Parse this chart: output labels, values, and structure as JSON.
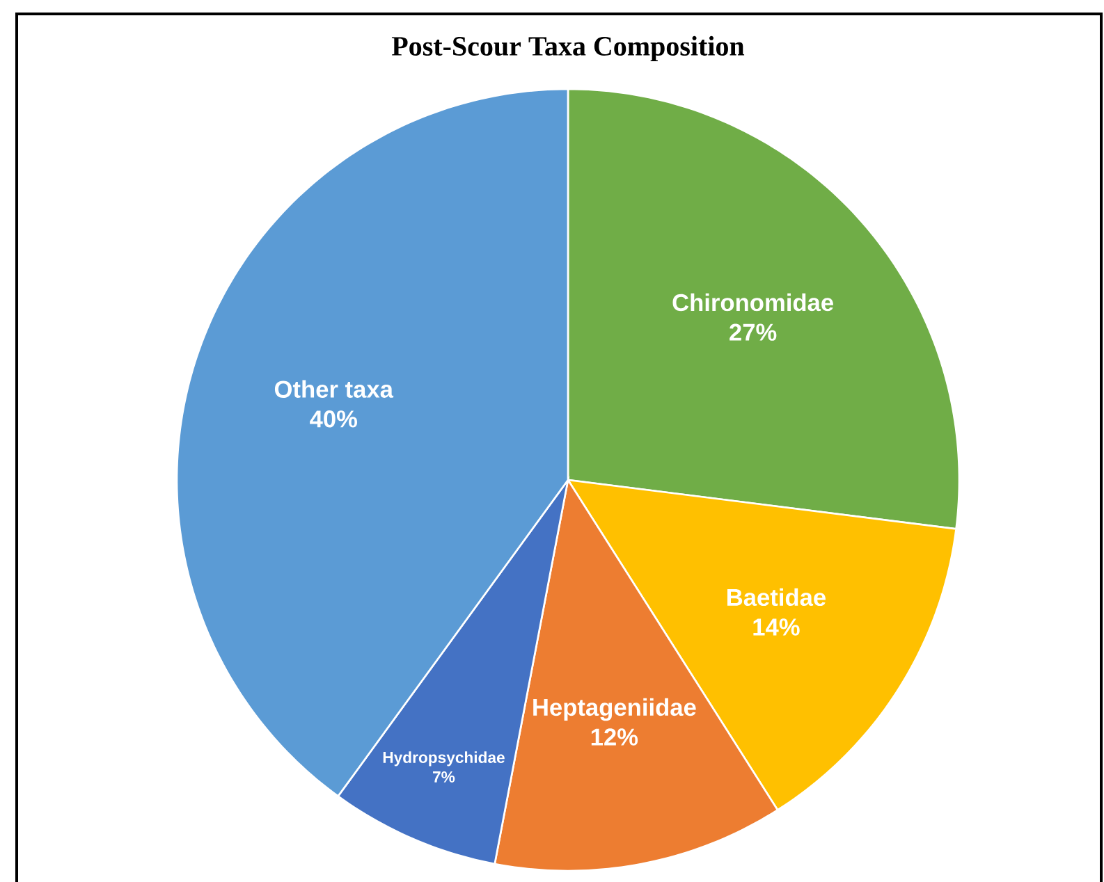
{
  "chart_data": {
    "type": "pie",
    "title": "Post-Scour Taxa Composition",
    "categories": [
      "Chironomidae",
      "Baetidae",
      "Heptageniidae",
      "Hydropsychidae",
      "Other taxa"
    ],
    "values": [
      27,
      14,
      12,
      7,
      40
    ],
    "value_labels": [
      "27%",
      "14%",
      "12%",
      "7%",
      "40%"
    ],
    "colors": [
      "#70ad47",
      "#ffc000",
      "#ed7d31",
      "#4472c4",
      "#5b9bd5"
    ]
  }
}
